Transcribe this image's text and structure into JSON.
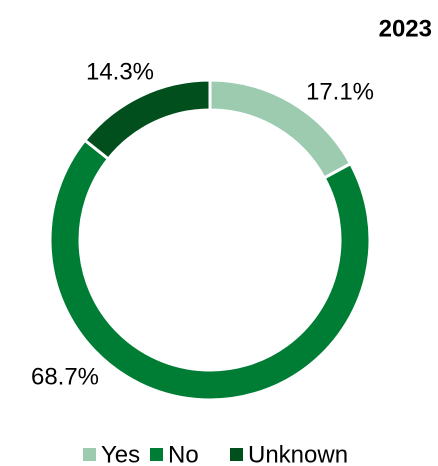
{
  "chart_data": {
    "type": "pie",
    "title": "2023",
    "categories": [
      "Yes",
      "No",
      "Unknown"
    ],
    "values": [
      17.1,
      68.7,
      14.3
    ],
    "value_labels": [
      "17.1%",
      "68.7%",
      "14.3%"
    ],
    "colors": [
      "#9ccbb0",
      "#007d35",
      "#004f1d"
    ],
    "legend": "bottom"
  }
}
